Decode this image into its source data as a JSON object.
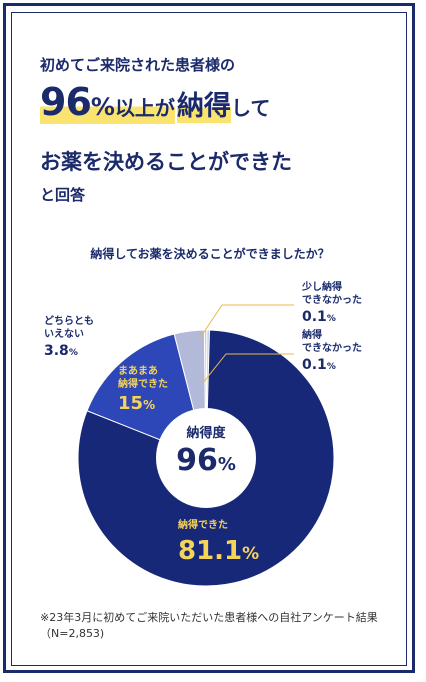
{
  "headline": {
    "line1": "初めてご来院された患者様の",
    "pct_num": "96",
    "pct_sign": "%",
    "above": "以上が",
    "kw": "納得",
    "shite": "して",
    "line3": "お薬を決めることができた",
    "line4": "と回答"
  },
  "chart_data": {
    "type": "pie",
    "title": "納得してお薬を決めることができましたか？",
    "center_label": "納得度",
    "center_value": "96",
    "center_unit": "%",
    "categories": [
      "納得できた",
      "まあまあ納得できた",
      "どちらともいえない",
      "少し納得できなかった",
      "納得できなかった"
    ],
    "values": [
      81.1,
      15,
      3.8,
      0.1,
      0.1
    ],
    "colors": [
      "#182878",
      "#2d46b8",
      "#b3b9d9",
      "#c8cde6",
      "#c8cde6"
    ],
    "labels": [
      {
        "lines": [
          "納得できた"
        ],
        "value": "81.1",
        "unit": "%"
      },
      {
        "lines": [
          "まあまあ",
          "納得できた"
        ],
        "value": "15",
        "unit": "%"
      },
      {
        "lines": [
          "どちらとも",
          "いえない"
        ],
        "value": "3.8",
        "unit": "%"
      },
      {
        "lines": [
          "少し納得",
          "できなかった"
        ],
        "value": "0.1",
        "unit": "%"
      },
      {
        "lines": [
          "納得",
          "できなかった"
        ],
        "value": "0.1",
        "unit": "%"
      }
    ]
  },
  "footnote": "※23年3月に初めてご来院いただいた患者様への自社アンケート結果（N=2,853)"
}
